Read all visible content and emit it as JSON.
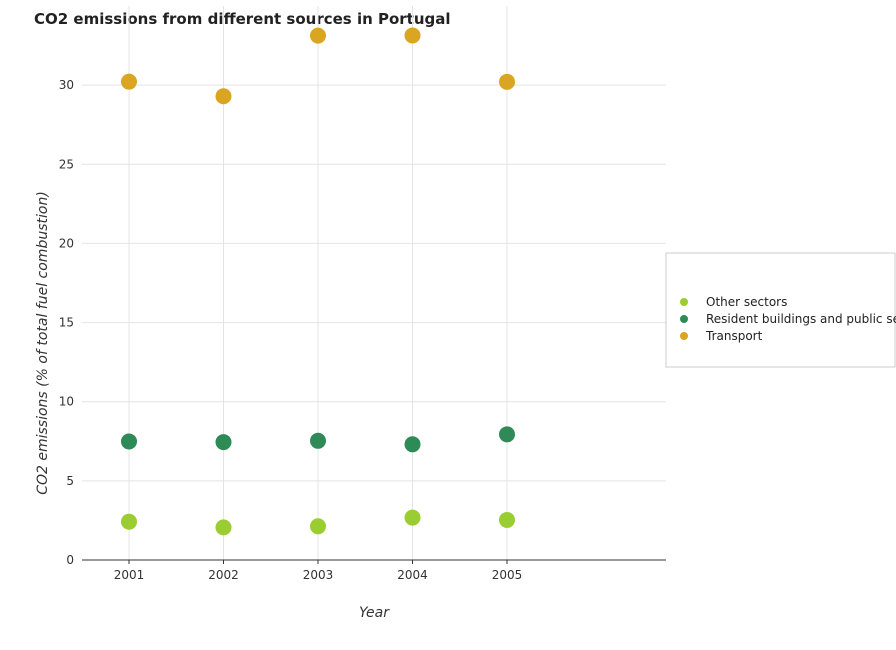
{
  "chart_data": {
    "type": "scatter",
    "title": "CO2 emissions from different sources in Portugal",
    "xlabel": "Year",
    "ylabel": "CO2 emissions (% of total fuel combustion)",
    "categories": [
      "2001",
      "2002",
      "2003",
      "2004",
      "2005"
    ],
    "ylim": [
      0,
      35
    ],
    "yticks": [
      "0",
      "5",
      "10",
      "15",
      "20",
      "25",
      "30"
    ],
    "grid": true,
    "legend_position": "right",
    "series": [
      {
        "name": "Other sectors",
        "color": "#9acd32",
        "values": [
          2.42,
          2.06,
          2.13,
          2.68,
          2.53
        ]
      },
      {
        "name": "Resident buildings and public services",
        "color": "#2e8b57",
        "values": [
          7.49,
          7.45,
          7.53,
          7.31,
          7.94
        ]
      },
      {
        "name": "Transport",
        "color": "#daa520",
        "values": [
          30.22,
          29.3,
          33.13,
          33.14,
          30.21
        ]
      }
    ]
  }
}
